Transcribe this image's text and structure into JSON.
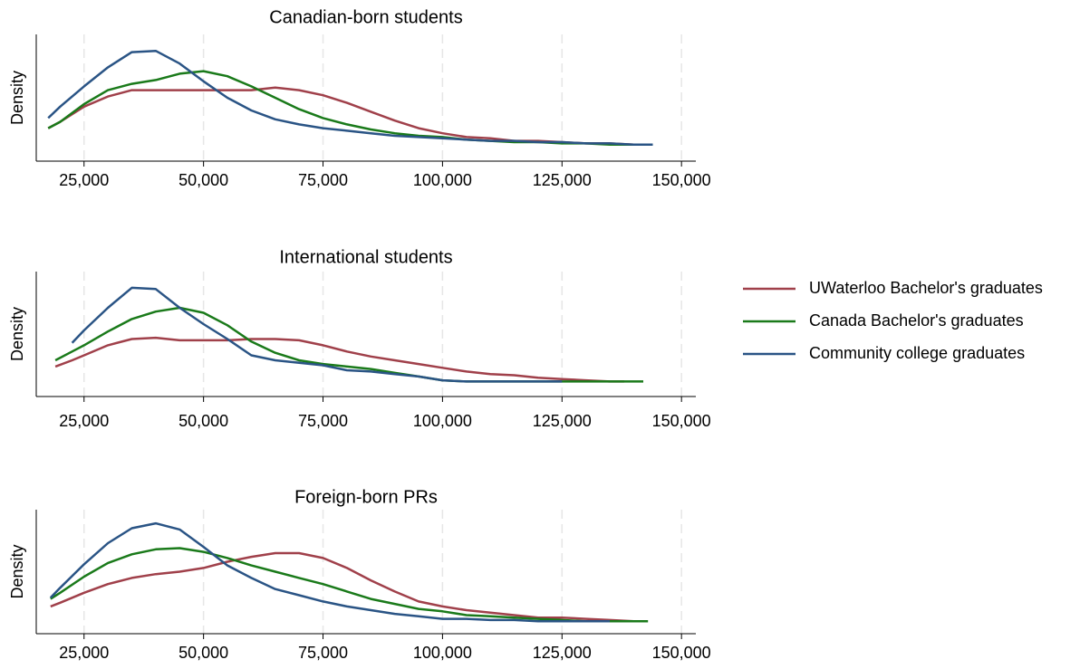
{
  "chart_data": [
    {
      "type": "line",
      "title": "Canadian-born students",
      "ylabel": "Density",
      "x": [
        17500,
        20000,
        25000,
        30000,
        35000,
        40000,
        45000,
        50000,
        55000,
        60000,
        65000,
        70000,
        75000,
        80000,
        85000,
        90000,
        95000,
        100000,
        105000,
        110000,
        115000,
        120000,
        125000,
        130000,
        135000,
        140000,
        144000
      ],
      "series": [
        {
          "color": "#a0404a",
          "values": [
            0.26,
            0.31,
            0.43,
            0.51,
            0.56,
            0.56,
            0.56,
            0.56,
            0.56,
            0.56,
            0.58,
            0.56,
            0.52,
            0.46,
            0.39,
            0.32,
            0.26,
            0.22,
            0.19,
            0.18,
            0.16,
            0.16,
            0.15,
            0.14,
            0.14,
            0.13,
            0.13
          ]
        },
        {
          "color": "#1a7a1a",
          "values": [
            0.26,
            0.31,
            0.45,
            0.56,
            0.61,
            0.64,
            0.69,
            0.71,
            0.67,
            0.59,
            0.5,
            0.41,
            0.34,
            0.29,
            0.25,
            0.22,
            0.2,
            0.19,
            0.17,
            0.16,
            0.15,
            0.15,
            0.14,
            0.14,
            0.13,
            0.13,
            0.13
          ]
        },
        {
          "color": "#2a5485",
          "values": [
            0.34,
            0.43,
            0.59,
            0.74,
            0.86,
            0.87,
            0.77,
            0.63,
            0.5,
            0.4,
            0.33,
            0.29,
            0.26,
            0.24,
            0.22,
            0.2,
            0.19,
            0.18,
            0.17,
            0.16,
            0.16,
            0.15,
            0.15,
            0.14,
            0.14,
            0.13,
            0.13
          ]
        }
      ],
      "xlim": [
        15000,
        153000
      ],
      "ylim": [
        0,
        1
      ],
      "xticks": [
        {
          "value": 25000,
          "label": "25,000"
        },
        {
          "value": 50000,
          "label": "50,000"
        },
        {
          "value": 75000,
          "label": "75,000"
        },
        {
          "value": 100000,
          "label": "100,000"
        },
        {
          "value": 125000,
          "label": "125,000"
        },
        {
          "value": 150000,
          "label": "150,000"
        }
      ],
      "grid": true
    },
    {
      "type": "line",
      "title": "International students",
      "ylabel": "Density",
      "x": [
        19000,
        22500,
        25000,
        30000,
        35000,
        40000,
        45000,
        50000,
        55000,
        60000,
        65000,
        70000,
        75000,
        80000,
        85000,
        90000,
        95000,
        100000,
        105000,
        110000,
        115000,
        120000,
        125000,
        130000,
        135000,
        138000,
        142000
      ],
      "series": [
        {
          "name": "UWaterloo Bachelor's graduates",
          "color": "#a0404a",
          "values": [
            0.24,
            0.29,
            0.33,
            0.41,
            0.46,
            0.47,
            0.45,
            0.45,
            0.45,
            0.46,
            0.46,
            0.45,
            0.41,
            0.36,
            0.32,
            0.29,
            0.26,
            0.23,
            0.2,
            0.18,
            0.17,
            0.15,
            0.14,
            0.13,
            0.12,
            0.12,
            null
          ]
        },
        {
          "name": "Canada Bachelor's graduates",
          "color": "#1a7a1a",
          "values": [
            0.29,
            0.36,
            0.41,
            0.52,
            0.62,
            0.68,
            0.71,
            0.67,
            0.57,
            0.44,
            0.35,
            0.29,
            0.26,
            0.24,
            0.22,
            0.19,
            0.16,
            0.13,
            0.12,
            0.12,
            0.12,
            0.12,
            0.12,
            0.12,
            0.12,
            0.12,
            0.12
          ]
        },
        {
          "name": "Community college graduates",
          "color": "#2a5485",
          "values": [
            null,
            0.43,
            0.53,
            0.71,
            0.87,
            0.86,
            0.71,
            0.58,
            0.46,
            0.33,
            0.29,
            0.27,
            0.25,
            0.21,
            0.2,
            0.18,
            0.16,
            0.13,
            0.12,
            0.12,
            0.12,
            0.12,
            0.12,
            null,
            null,
            null,
            null
          ]
        }
      ],
      "xlim": [
        15000,
        153000
      ],
      "ylim": [
        0,
        1
      ],
      "xticks": [
        {
          "value": 25000,
          "label": "25,000"
        },
        {
          "value": 50000,
          "label": "50,000"
        },
        {
          "value": 75000,
          "label": "75,000"
        },
        {
          "value": 100000,
          "label": "100,000"
        },
        {
          "value": 125000,
          "label": "125,000"
        },
        {
          "value": 150000,
          "label": "150,000"
        }
      ],
      "grid": true,
      "legend": "right"
    },
    {
      "type": "line",
      "title": "Foreign-born PRs",
      "ylabel": "Density",
      "x": [
        18000,
        20000,
        25000,
        30000,
        35000,
        40000,
        45000,
        50000,
        55000,
        60000,
        65000,
        70000,
        75000,
        80000,
        85000,
        90000,
        95000,
        100000,
        105000,
        110000,
        115000,
        120000,
        125000,
        130000,
        135000,
        140000,
        143000
      ],
      "series": [
        {
          "color": "#a0404a",
          "values": [
            0.22,
            0.25,
            0.33,
            0.4,
            0.45,
            0.48,
            0.5,
            0.53,
            0.58,
            0.62,
            0.65,
            0.65,
            0.61,
            0.53,
            0.43,
            0.34,
            0.26,
            0.22,
            0.19,
            0.17,
            0.15,
            0.13,
            0.13,
            0.12,
            0.11,
            0.1,
            null
          ]
        },
        {
          "color": "#1a7a1a",
          "values": [
            0.28,
            0.33,
            0.46,
            0.57,
            0.64,
            0.68,
            0.69,
            0.66,
            0.61,
            0.55,
            0.5,
            0.45,
            0.4,
            0.34,
            0.28,
            0.24,
            0.2,
            0.18,
            0.15,
            0.14,
            0.13,
            0.12,
            0.11,
            0.1,
            0.1,
            0.1,
            0.1
          ]
        },
        {
          "color": "#2a5485",
          "values": [
            0.29,
            0.37,
            0.56,
            0.73,
            0.85,
            0.89,
            0.84,
            0.7,
            0.55,
            0.45,
            0.36,
            0.31,
            0.26,
            0.22,
            0.19,
            0.16,
            0.14,
            0.12,
            0.12,
            0.11,
            0.11,
            0.1,
            0.1,
            0.1,
            0.1,
            null,
            null
          ]
        }
      ],
      "xlim": [
        15000,
        153000
      ],
      "ylim": [
        0,
        1
      ],
      "xticks": [
        {
          "value": 25000,
          "label": "25,000"
        },
        {
          "value": 50000,
          "label": "50,000"
        },
        {
          "value": 75000,
          "label": "75,000"
        },
        {
          "value": 100000,
          "label": "100,000"
        },
        {
          "value": 125000,
          "label": "125,000"
        },
        {
          "value": 150000,
          "label": "150,000"
        }
      ],
      "grid": true
    }
  ]
}
